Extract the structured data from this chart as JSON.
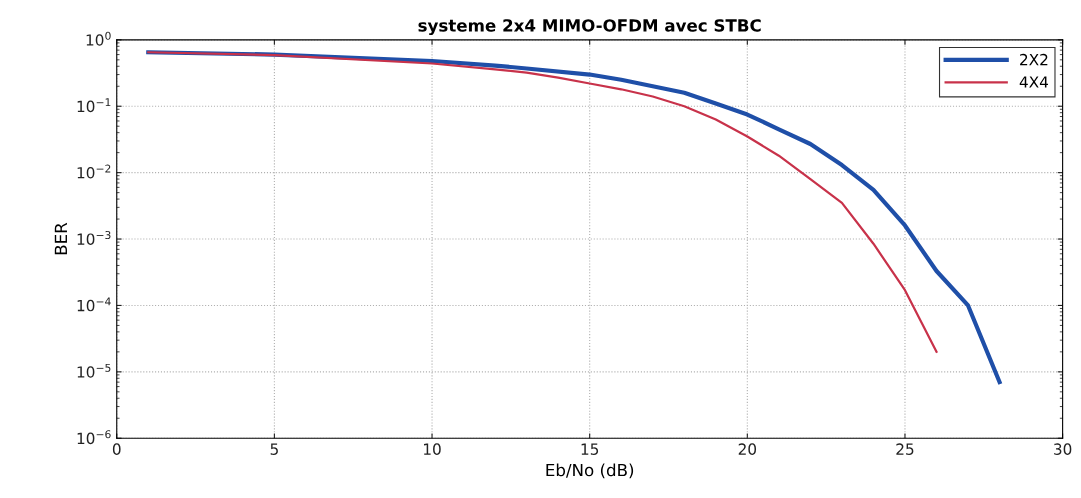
{
  "chart_data": {
    "type": "line",
    "title": "systeme 2x4 MIMO-OFDM avec STBC",
    "xlabel": "Eb/No (dB)",
    "ylabel": "BER",
    "log": "y",
    "grid": true,
    "legend": "top right",
    "marker": "none",
    "line_style": "solid",
    "xlim": [
      0,
      30
    ],
    "xticks": [
      0,
      5,
      10,
      15,
      20,
      25,
      30
    ],
    "ylim": [
      1e-06,
      1
    ],
    "yticks": [
      {
        "value": 1e-06,
        "label": "10$^{−6}$"
      },
      {
        "value": 1e-05,
        "label": "10$^{−5}$"
      },
      {
        "value": 0.0001,
        "label": "10$^{−4}$"
      },
      {
        "value": 0.001,
        "label": "10$^{−3}$"
      },
      {
        "value": 0.01,
        "label": "10$^{−2}$"
      },
      {
        "value": 0.1,
        "label": "10$^{−1}$"
      },
      {
        "value": 1,
        "label": "10$^{0}$"
      }
    ],
    "series": [
      {
        "name": "2X2",
        "color": "#1f4fa8",
        "x": [
          1,
          5,
          10,
          12,
          13,
          15,
          16,
          17,
          18,
          19,
          20,
          21,
          22,
          23,
          24,
          25,
          26,
          27,
          28
        ],
        "values": [
          0.65,
          0.6,
          0.48,
          0.41,
          0.37,
          0.3,
          0.25,
          0.2,
          0.16,
          0.11,
          0.075,
          0.045,
          0.027,
          0.013,
          0.0055,
          0.0016,
          0.00033,
          0.0001,
          7e-06
        ]
      },
      {
        "name": "4X4",
        "color": "#c8324a",
        "x": [
          1,
          5,
          10,
          12,
          13,
          14,
          15,
          16,
          17,
          18,
          19,
          20,
          21,
          22,
          23,
          24,
          25,
          26
        ],
        "values": [
          0.65,
          0.59,
          0.44,
          0.36,
          0.32,
          0.27,
          0.22,
          0.18,
          0.14,
          0.1,
          0.063,
          0.035,
          0.018,
          0.008,
          0.0035,
          0.00085,
          0.00017,
          2e-05
        ]
      }
    ]
  }
}
